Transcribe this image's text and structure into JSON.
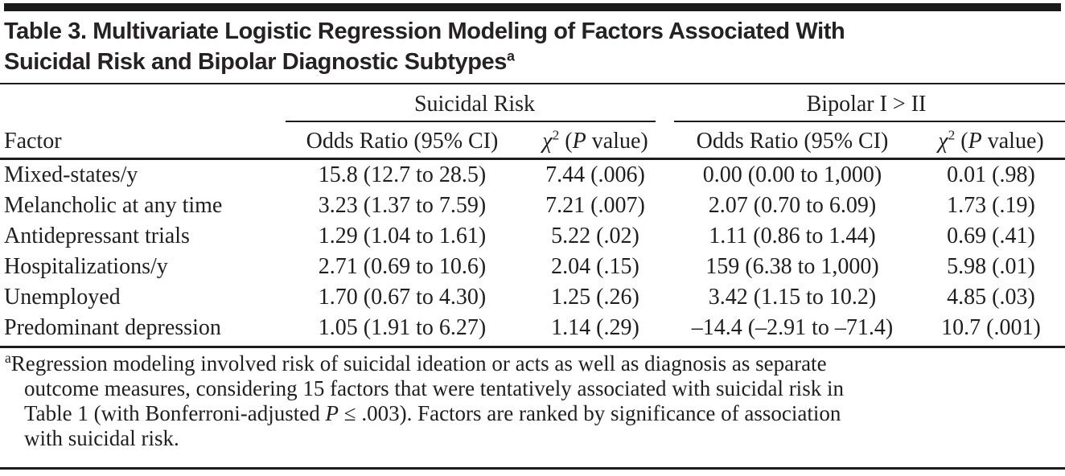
{
  "title": {
    "line1": "Table 3. Multivariate Logistic Regression Modeling of Factors Associated With",
    "line2": "Suicidal Risk and Bipolar Diagnostic Subtypes",
    "footnote_marker": "a"
  },
  "header": {
    "factor_label": "Factor",
    "groups": [
      {
        "label": "Suicidal Risk"
      },
      {
        "label": "Bipolar I > II"
      }
    ],
    "or_label": "Odds Ratio (95% CI)",
    "chi_label": {
      "chi": "χ",
      "sup": "2",
      "pre_p": " (",
      "p": "P",
      "post_p": " value)"
    }
  },
  "rows": [
    {
      "factor": "Mixed-states/y",
      "s_or": "15.8 (12.7 to 28.5)",
      "s_chi": "7.44 (.006)",
      "b_or": "0.00 (0.00 to 1,000)",
      "b_chi": "0.01 (.98)"
    },
    {
      "factor": "Melancholic at any time",
      "s_or": "3.23 (1.37 to 7.59)",
      "s_chi": "7.21 (.007)",
      "b_or": "2.07 (0.70 to 6.09)",
      "b_chi": "1.73 (.19)"
    },
    {
      "factor": "Antidepressant trials",
      "s_or": "1.29 (1.04 to 1.61)",
      "s_chi": "5.22 (.02)",
      "b_or": "1.11 (0.86 to 1.44)",
      "b_chi": "0.69 (.41)"
    },
    {
      "factor": "Hospitalizations/y",
      "s_or": "2.71 (0.69 to 10.6)",
      "s_chi": "2.04 (.15)",
      "b_or": "159 (6.38 to 1,000)",
      "b_chi": "5.98 (.01)"
    },
    {
      "factor": "Unemployed",
      "s_or": "1.70 (0.67 to 4.30)",
      "s_chi": "1.25 (.26)",
      "b_or": "3.42 (1.15 to 10.2)",
      "b_chi": "4.85 (.03)"
    },
    {
      "factor": "Predominant depression",
      "s_or": "1.05 (1.91 to 6.27)",
      "s_chi": "1.14 (.29)",
      "b_or": "–14.4 (–2.91 to –71.4)",
      "b_chi": "10.7 (.001)"
    }
  ],
  "footnote": {
    "marker": "a",
    "line1": "Regression modeling involved risk of suicidal ideation or acts as well as diagnosis as separate",
    "line2": "outcome measures, considering 15 factors that were tentatively associated with suicidal risk in",
    "line3_pre": "Table 1 (with Bonferroni-adjusted ",
    "line3_italic": "P",
    "line3_post": " ≤ .003). Factors are ranked by significance of association",
    "line4": "with suicidal risk."
  },
  "colors": {
    "text": "#1f1f1f",
    "rule": "#1c1c1c",
    "top_bar": "#1a1a1a"
  }
}
